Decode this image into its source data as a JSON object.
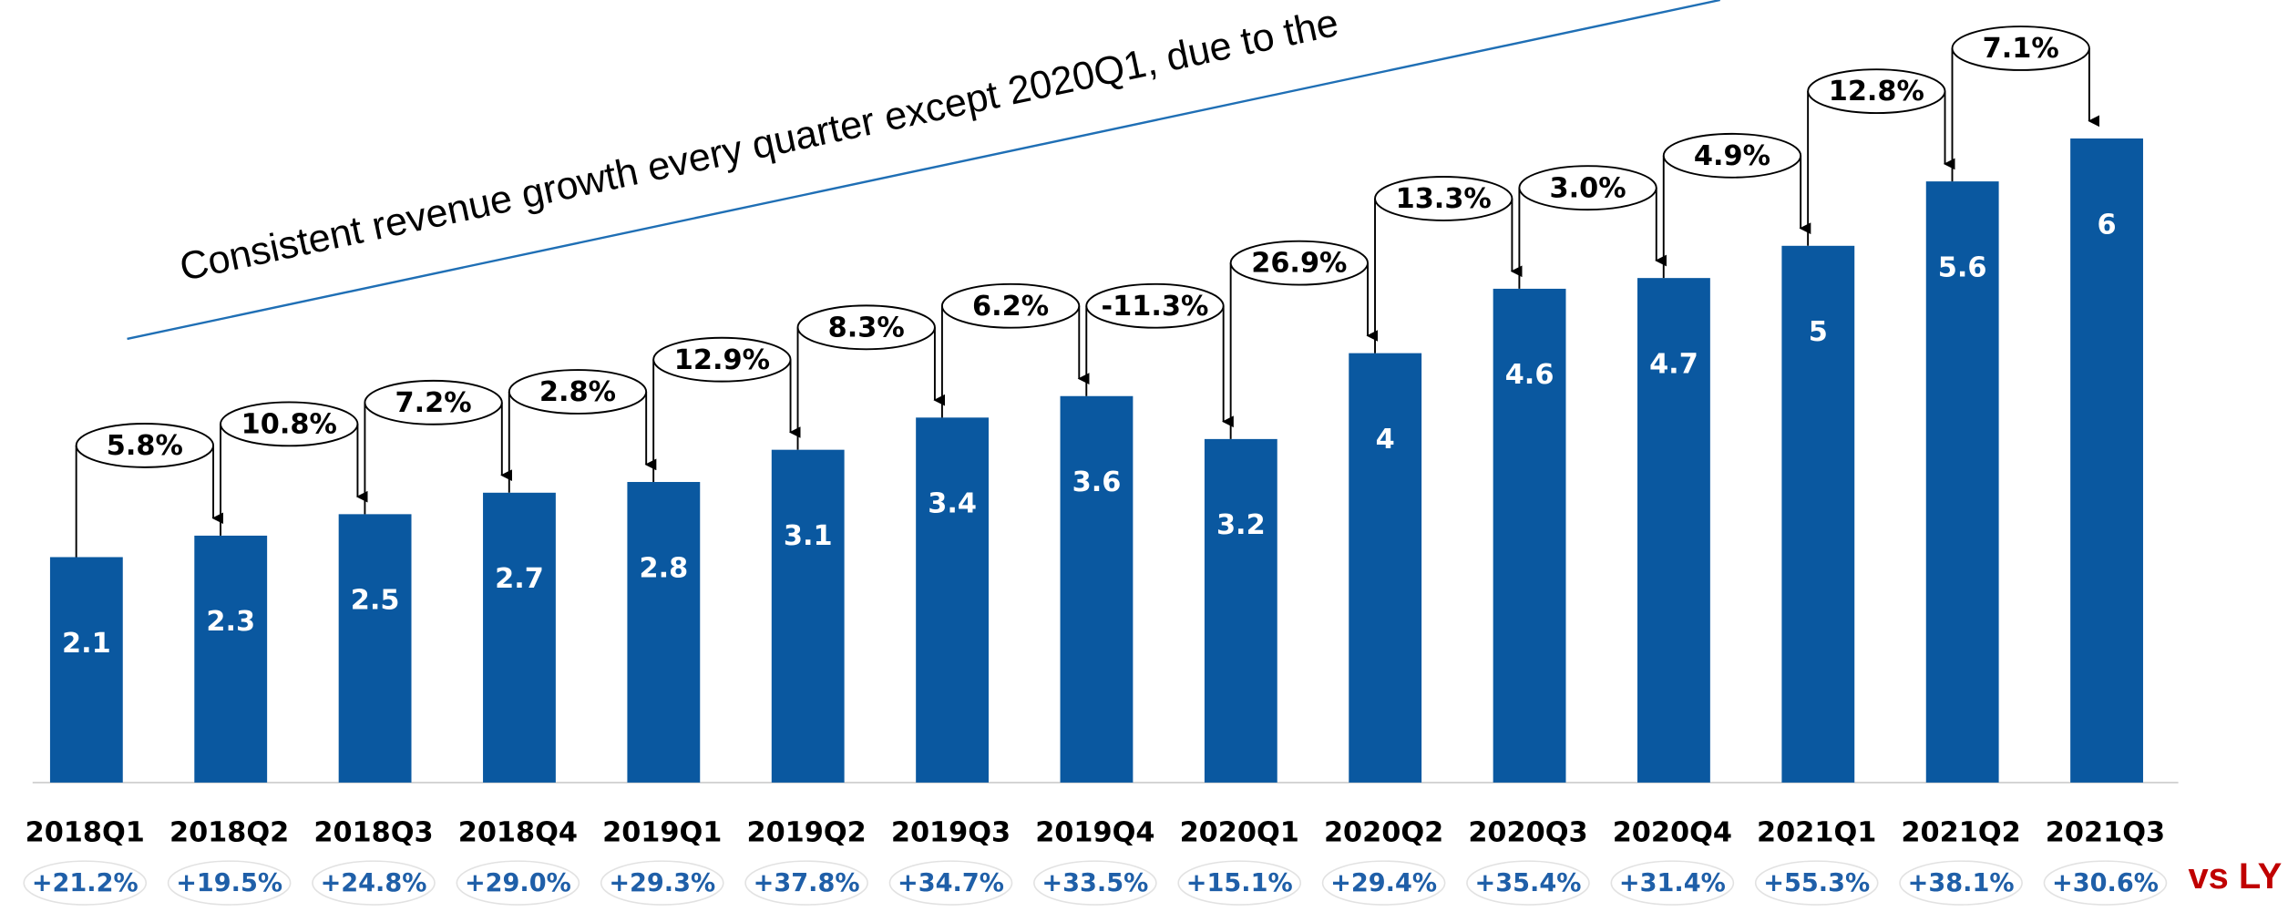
{
  "chart_data": {
    "type": "bar",
    "annotation": "Consistent revenue growth every quarter except 2020Q1, due to the",
    "categories": [
      "2018Q1",
      "2018Q2",
      "2018Q3",
      "2018Q4",
      "2019Q1",
      "2019Q2",
      "2019Q3",
      "2019Q4",
      "2020Q1",
      "2020Q2",
      "2020Q3",
      "2020Q4",
      "2021Q1",
      "2021Q2",
      "2021Q3"
    ],
    "values": [
      2.1,
      2.3,
      2.5,
      2.7,
      2.8,
      3.1,
      3.4,
      3.6,
      3.2,
      4.0,
      4.6,
      4.7,
      5.0,
      5.6,
      6.0
    ],
    "color": "#0a58a0",
    "qoq_growth": {
      "values": [
        5.8,
        10.8,
        7.2,
        2.8,
        12.9,
        8.3,
        6.2,
        -11.3,
        26.9,
        13.3,
        3.0,
        4.9,
        12.8,
        7.1
      ],
      "value_labels": [
        "5.8%",
        "10.8%",
        "7.2%",
        "2.8%",
        "12.9%",
        "8.3%",
        "6.2%",
        "-11.3%",
        "26.9%",
        "13.3%",
        "3.0%",
        "4.9%",
        "12.8%",
        "7.1%"
      ]
    },
    "yoy_growth": {
      "label": "vs LY",
      "color": "#1f5fa8",
      "values": [
        21.2,
        19.5,
        24.8,
        29.0,
        29.3,
        37.8,
        34.7,
        33.5,
        15.1,
        29.4,
        35.4,
        31.4,
        55.3,
        38.1,
        30.6
      ],
      "value_labels": [
        "+21.2%",
        "+19.5%",
        "+24.8%",
        "+29.0%",
        "+29.3%",
        "+37.8%",
        "+34.7%",
        "+33.5%",
        "+15.1%",
        "+29.4%",
        "+35.4%",
        "+31.4%",
        "+55.3%",
        "+38.1%",
        "+30.6%"
      ]
    }
  }
}
